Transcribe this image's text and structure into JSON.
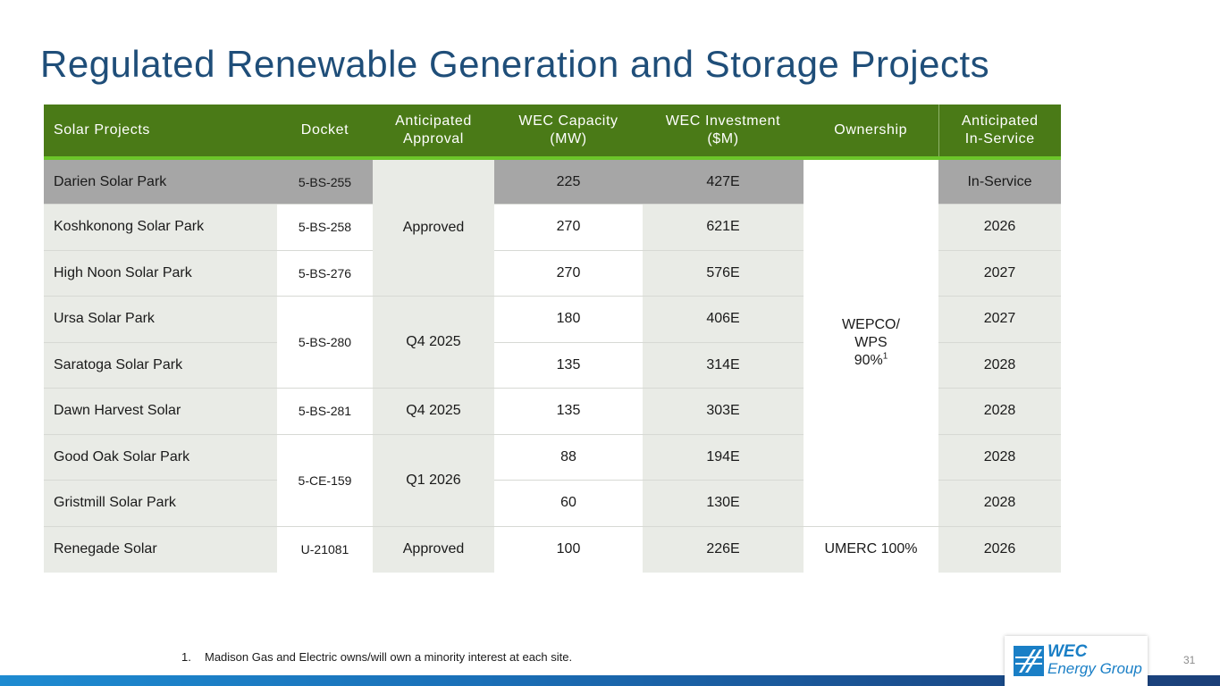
{
  "title": "Regulated Renewable Generation and Storage Projects",
  "table": {
    "headers": {
      "project": "Solar Projects",
      "docket": "Docket",
      "approval_1": "Anticipated",
      "approval_2": "Approval",
      "capacity_1": "WEC Capacity",
      "capacity_2": "(MW)",
      "investment_1": "WEC Investment",
      "investment_2": "($M)",
      "ownership": "Ownership",
      "in_service_1": "Anticipated",
      "in_service_2": "In-Service"
    },
    "rows": [
      {
        "name": "Darien Solar Park",
        "docket": "5-BS-255",
        "approval": "Approved",
        "capacity": "225",
        "investment": "427E",
        "in_service": "In-Service"
      },
      {
        "name": "Koshkonong Solar Park",
        "docket": "5-BS-258",
        "capacity": "270",
        "investment": "621E",
        "in_service": "2026"
      },
      {
        "name": "High Noon Solar Park",
        "docket": "5-BS-276",
        "capacity": "270",
        "investment": "576E",
        "in_service": "2027"
      },
      {
        "name": "Ursa Solar Park",
        "docket": "5-BS-280",
        "approval": "Q4 2025",
        "capacity": "180",
        "investment": "406E",
        "in_service": "2027"
      },
      {
        "name": "Saratoga Solar Park",
        "capacity": "135",
        "investment": "314E",
        "in_service": "2028"
      },
      {
        "name": "Dawn Harvest Solar",
        "docket": "5-BS-281",
        "approval": "Q4 2025",
        "capacity": "135",
        "investment": "303E",
        "in_service": "2028"
      },
      {
        "name": "Good Oak Solar Park",
        "docket": "5-CE-159",
        "approval": "Q1 2026",
        "capacity": "88",
        "investment": "194E",
        "in_service": "2028"
      },
      {
        "name": "Gristmill Solar Park",
        "capacity": "60",
        "investment": "130E",
        "in_service": "2028"
      },
      {
        "name": "Renegade Solar",
        "docket": "U-21081",
        "approval": "Approved",
        "capacity": "100",
        "investment": "226E",
        "ownership": "UMERC 100%",
        "in_service": "2026"
      }
    ],
    "ownership_group": {
      "line1": "WEPCO/",
      "line2": "WPS",
      "line3": "90%",
      "footnote_ref": "1"
    }
  },
  "footnote": {
    "number": "1.",
    "text": "Madison Gas and Electric owns/will own a minority interest at each site."
  },
  "page_number": "31",
  "logo": {
    "line1": "WEC",
    "line2": "Energy Group",
    "icon": "wec-logo-icon",
    "color": "#1a7fc6"
  },
  "colors": {
    "title": "#1f4e79",
    "header_bg": "#4a7a17",
    "header_accent": "#6cc629",
    "highlight_row": "#a6a6a6",
    "shade": "#e9ebe6"
  }
}
